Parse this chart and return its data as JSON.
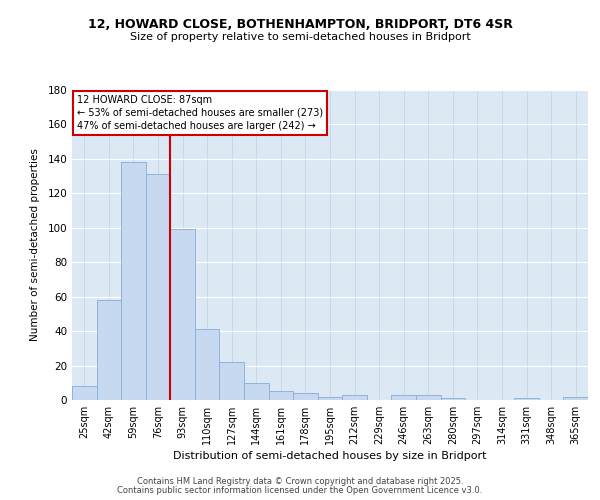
{
  "title_line1": "12, HOWARD CLOSE, BOTHENHAMPTON, BRIDPORT, DT6 4SR",
  "title_line2": "Size of property relative to semi-detached houses in Bridport",
  "xlabel": "Distribution of semi-detached houses by size in Bridport",
  "ylabel": "Number of semi-detached properties",
  "categories": [
    "25sqm",
    "42sqm",
    "59sqm",
    "76sqm",
    "93sqm",
    "110sqm",
    "127sqm",
    "144sqm",
    "161sqm",
    "178sqm",
    "195sqm",
    "212sqm",
    "229sqm",
    "246sqm",
    "263sqm",
    "280sqm",
    "297sqm",
    "314sqm",
    "331sqm",
    "348sqm",
    "365sqm"
  ],
  "values": [
    8,
    58,
    138,
    131,
    99,
    41,
    22,
    10,
    5,
    4,
    2,
    3,
    0,
    3,
    3,
    1,
    0,
    0,
    1,
    0,
    2
  ],
  "bar_color": "#c6d9f0",
  "bar_edge_color": "#8db4d8",
  "property_label": "12 HOWARD CLOSE: 87sqm",
  "pct_smaller": 53,
  "n_smaller": 273,
  "pct_larger": 47,
  "n_larger": 242,
  "vline_color": "#cc0000",
  "vline_x": 3.5,
  "ylim": [
    0,
    180
  ],
  "yticks": [
    0,
    20,
    40,
    60,
    80,
    100,
    120,
    140,
    160,
    180
  ],
  "annotation_box_color": "#cc0000",
  "footer1": "Contains HM Land Registry data © Crown copyright and database right 2025.",
  "footer2": "Contains public sector information licensed under the Open Government Licence v3.0.",
  "plot_bg_color": "#dce9f5",
  "fig_bg_color": "#ffffff",
  "grid_color": "#c0d0e0"
}
